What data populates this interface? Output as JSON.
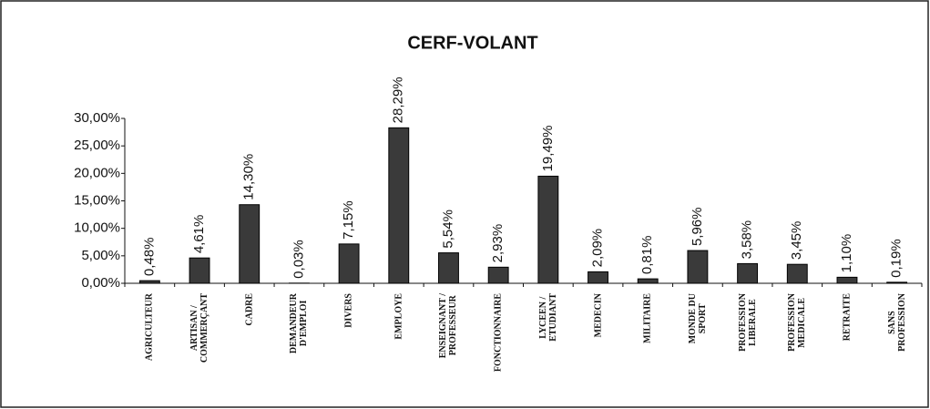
{
  "chart_data": {
    "type": "bar",
    "title": "CERF-VOLANT",
    "categories": [
      "AGRICULTEUR",
      "ARTISAN /\nCOMMERÇANT",
      "CADRE",
      "DEMANDEUR\nD'EMPLOI",
      "DIVERS",
      "EMPLOYE",
      "ENSEIGNANT /\nPROFESSEUR",
      "FONCTIONNAIRE",
      "LYCEEN /\nETUDIANT",
      "MEDECIN",
      "MILITAIRE",
      "MONDE DU\nSPORT",
      "PROFESSION\nLIBERALE",
      "PROFESSION\nMEDICALE",
      "RETRAITE",
      "SANS\nPROFESSION"
    ],
    "values": [
      0.48,
      4.61,
      14.3,
      0.03,
      7.15,
      28.29,
      5.54,
      2.93,
      19.49,
      2.09,
      0.81,
      5.96,
      3.58,
      3.45,
      1.1,
      0.19
    ],
    "value_labels": [
      "0,48%",
      "4,61%",
      "14,30%",
      "0,03%",
      "7,15%",
      "28,29%",
      "5,54%",
      "2,93%",
      "19,49%",
      "2,09%",
      "0,81%",
      "5,96%",
      "3,58%",
      "3,45%",
      "1,10%",
      "0,19%"
    ],
    "color": "#3a3a3a",
    "ylim": [
      0,
      30
    ],
    "yticks": [
      {
        "value": 0,
        "label": "0,00%"
      },
      {
        "value": 5,
        "label": "5,00%"
      },
      {
        "value": 10,
        "label": "10,00%"
      },
      {
        "value": 15,
        "label": "15,00%"
      },
      {
        "value": 20,
        "label": "20,00%"
      },
      {
        "value": 25,
        "label": "25,00%"
      },
      {
        "value": 30,
        "label": "30,00%"
      }
    ],
    "grid": false
  }
}
